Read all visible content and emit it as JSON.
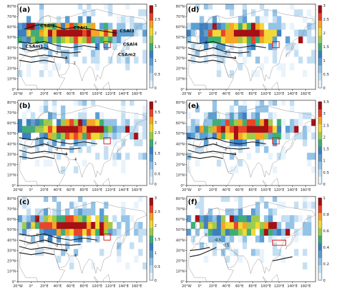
{
  "colors": {
    "colormap": [
      "#e9f3fb",
      "#c4dff2",
      "#94c3e6",
      "#5b9fd3",
      "#3d7fc0",
      "#3fae75",
      "#9dcc4c",
      "#f1d936",
      "#f6a524",
      "#e8452a",
      "#a50f15"
    ],
    "contour": "#111111",
    "box": "#e31a1c",
    "land": "#888888"
  },
  "chart_data": [
    {
      "panel": "(a)",
      "type": "heatmap",
      "colorbar": {
        "min": 0,
        "max": 3,
        "ticks": [
          "0",
          "0.5",
          "1",
          "1.5",
          "2",
          "2.5",
          "3"
        ]
      },
      "xticks": [
        "20°W",
        "0°",
        "20°E",
        "40°E",
        "60°E",
        "80°E",
        "100°E",
        "120°E",
        "140°E",
        "160°E"
      ],
      "yticks": [
        "0°",
        "10°N",
        "20°N",
        "30°N",
        "40°N",
        "50°N",
        "60°N",
        "70°N",
        "80°N"
      ],
      "contour_labels": [
        "0",
        "-1",
        "-2",
        "-3",
        "2"
      ],
      "region_labels": [
        {
          "text": "CSAl2",
          "lon": 25,
          "lat": 60
        },
        {
          "text": "CSAl1",
          "lon": 75,
          "lat": 58
        },
        {
          "text": "CSAl3",
          "lon": 145,
          "lat": 55
        },
        {
          "text": "CSAm1",
          "lon": 5,
          "lat": 40
        },
        {
          "text": "CSAl4",
          "lon": 150,
          "lat": 42
        },
        {
          "text": "CSAm2",
          "lon": 145,
          "lat": 32
        }
      ],
      "box": {
        "lon": [
          110,
          120
        ],
        "lat": [
          40,
          46
        ]
      }
    },
    {
      "panel": "(b)",
      "type": "heatmap",
      "colorbar": {
        "min": 0,
        "max": 4,
        "ticks": [
          "0",
          "0.5",
          "1",
          "1.5",
          "2",
          "2.5",
          "3",
          "3.5",
          "4"
        ]
      },
      "xticks": [
        "20°W",
        "0°",
        "20°E",
        "40°E",
        "60°E",
        "80°E",
        "100°E",
        "120°E",
        "140°E",
        "160°E"
      ],
      "yticks": [
        "0°",
        "10°N",
        "20°N",
        "30°N",
        "40°N",
        "50°N",
        "60°N",
        "70°N",
        "80°N"
      ],
      "contour_labels": [
        "0",
        "-1",
        "-2",
        "-3",
        "-4"
      ],
      "box": {
        "lon": [
          110,
          120
        ],
        "lat": [
          40,
          46
        ]
      }
    },
    {
      "panel": "(c)",
      "type": "heatmap",
      "colorbar": {
        "min": 0,
        "max": 3,
        "ticks": [
          "0",
          "0.5",
          "1",
          "1.5",
          "2",
          "2.5",
          "3"
        ]
      },
      "xticks": [
        "20°W",
        "0°",
        "20°E",
        "40°E",
        "60°E",
        "80°E",
        "100°E",
        "120°E",
        "140°E",
        "160°E"
      ],
      "yticks": [
        "0°",
        "10°N",
        "20°N",
        "30°N",
        "40°N",
        "50°N",
        "60°N",
        "70°N",
        "80°N"
      ],
      "contour_labels": [
        "0",
        "-1",
        "-2",
        "-3",
        "-4"
      ],
      "box": {
        "lon": [
          110,
          120
        ],
        "lat": [
          40,
          46
        ]
      }
    },
    {
      "panel": "(d)",
      "type": "heatmap",
      "colorbar": {
        "min": 0,
        "max": 3,
        "ticks": [
          "0",
          "0.5",
          "1",
          "1.5",
          "2",
          "2.5",
          "3"
        ]
      },
      "xticks": [
        "20°W",
        "0°",
        "20°E",
        "40°E",
        "60°E",
        "80°E",
        "100°E",
        "120°E",
        "140°E",
        "160°E"
      ],
      "yticks": [
        "0°",
        "10°N",
        "20°N",
        "30°N",
        "40°N",
        "50°N",
        "60°N",
        "70°N",
        "80°N"
      ],
      "contour_labels": [
        "0",
        "-1",
        "-2",
        "-3"
      ],
      "box": {
        "lon": [
          110,
          120
        ],
        "lat": [
          40,
          46
        ]
      }
    },
    {
      "panel": "(e)",
      "type": "heatmap",
      "colorbar": {
        "min": 0,
        "max": 3.5,
        "ticks": [
          "0",
          "0.5",
          "1",
          "1.5",
          "2",
          "2.5",
          "3",
          "3.5"
        ]
      },
      "xticks": [
        "20°W",
        "0°",
        "20°E",
        "40°E",
        "60°E",
        "80°E",
        "100°E",
        "120°E",
        "140°E",
        "160°E"
      ],
      "yticks": [
        "0°",
        "10°N",
        "20°N",
        "30°N",
        "40°N",
        "50°N",
        "60°N",
        "70°N",
        "80°N"
      ],
      "contour_labels": [
        "0",
        "-1",
        "-2",
        "-3"
      ],
      "box": {
        "lon": [
          110,
          120
        ],
        "lat": [
          40,
          46
        ]
      }
    },
    {
      "panel": "(f)",
      "type": "heatmap",
      "colorbar": {
        "min": 0,
        "max": 1,
        "ticks": [
          "0",
          "0.2",
          "0.4",
          "0.6",
          "0.8",
          "1"
        ]
      },
      "xticks": [
        "20°W",
        "0°",
        "20°E",
        "40°E",
        "60°E",
        "80°E",
        "100°E",
        "120°E",
        "140°E",
        "160°E"
      ],
      "yticks": [
        "0°",
        "10°N",
        "20°N",
        "30°N",
        "40°N",
        "50°N",
        "60°N",
        "70°N",
        "80°N"
      ],
      "contour_labels": [
        "0",
        "-0.5",
        "0.5"
      ],
      "box": {
        "lon": [
          110,
          130
        ],
        "lat": [
          35,
          40
        ]
      }
    }
  ]
}
